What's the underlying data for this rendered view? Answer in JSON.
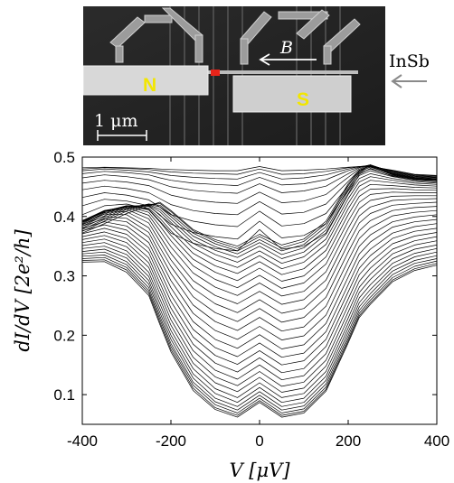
{
  "figure": {
    "micrograph": {
      "contact_left_label": "N",
      "contact_right_label": "S",
      "field_label": "B",
      "wire_label": "InSb",
      "scale_bar_label": "1 μm",
      "colors": {
        "contact_label": "#f2e600",
        "junction_marker": "#e8241a"
      }
    }
  },
  "chart_data": {
    "type": "line",
    "title": "",
    "xlabel": "V [μV]",
    "ylabel": "dI/dV [2e²/h]",
    "xlim": [
      -400,
      400
    ],
    "ylim": [
      0.05,
      0.5
    ],
    "xticks": [
      -400,
      -200,
      0,
      200,
      400
    ],
    "yticks": [
      0.1,
      0.2,
      0.3,
      0.4,
      0.5
    ],
    "xtick_labels": [
      "-400",
      "-200",
      "0",
      "200",
      "400"
    ],
    "ytick_labels": [
      "0.1",
      "0.2",
      "0.3",
      "0.4",
      "0.5"
    ],
    "grid": false,
    "legend": "none",
    "line_color": "#000000",
    "curve_count": 40,
    "x": [
      -400,
      -350,
      -300,
      -250,
      -225,
      -200,
      -150,
      -100,
      -50,
      0,
      50,
      100,
      150,
      200,
      225,
      250,
      300,
      350,
      400
    ],
    "series": [
      {
        "values": [
          0.372,
          0.388,
          0.405,
          0.418,
          0.424,
          0.41,
          0.378,
          0.361,
          0.35,
          0.37,
          0.352,
          0.362,
          0.392,
          0.455,
          0.478,
          0.485,
          0.472,
          0.465,
          0.462
        ]
      },
      {
        "values": [
          0.375,
          0.392,
          0.409,
          0.42,
          0.422,
          0.408,
          0.376,
          0.358,
          0.346,
          0.366,
          0.347,
          0.358,
          0.388,
          0.452,
          0.476,
          0.483,
          0.471,
          0.464,
          0.461
        ]
      },
      {
        "values": [
          0.378,
          0.395,
          0.412,
          0.421,
          0.419,
          0.404,
          0.372,
          0.354,
          0.342,
          0.361,
          0.342,
          0.353,
          0.383,
          0.448,
          0.473,
          0.48,
          0.469,
          0.463,
          0.46
        ]
      },
      {
        "values": [
          0.381,
          0.398,
          0.414,
          0.421,
          0.416,
          0.4,
          0.367,
          0.349,
          0.337,
          0.356,
          0.336,
          0.347,
          0.377,
          0.443,
          0.469,
          0.477,
          0.467,
          0.461,
          0.458
        ]
      },
      {
        "values": [
          0.384,
          0.401,
          0.416,
          0.42,
          0.412,
          0.395,
          0.361,
          0.343,
          0.331,
          0.35,
          0.329,
          0.34,
          0.37,
          0.437,
          0.464,
          0.472,
          0.464,
          0.459,
          0.456
        ]
      },
      {
        "values": [
          0.386,
          0.404,
          0.417,
          0.419,
          0.408,
          0.39,
          0.355,
          0.336,
          0.323,
          0.342,
          0.321,
          0.332,
          0.362,
          0.43,
          0.458,
          0.467,
          0.461,
          0.456,
          0.454
        ]
      },
      {
        "values": [
          0.388,
          0.406,
          0.418,
          0.417,
          0.403,
          0.383,
          0.347,
          0.327,
          0.314,
          0.334,
          0.312,
          0.323,
          0.353,
          0.422,
          0.451,
          0.461,
          0.457,
          0.453,
          0.451
        ]
      },
      {
        "values": [
          0.39,
          0.408,
          0.418,
          0.414,
          0.397,
          0.376,
          0.338,
          0.317,
          0.304,
          0.324,
          0.302,
          0.312,
          0.343,
          0.413,
          0.443,
          0.454,
          0.452,
          0.449,
          0.448
        ]
      },
      {
        "values": [
          0.391,
          0.409,
          0.418,
          0.411,
          0.391,
          0.368,
          0.328,
          0.306,
          0.292,
          0.313,
          0.291,
          0.3,
          0.332,
          0.403,
          0.434,
          0.446,
          0.447,
          0.445,
          0.444
        ]
      },
      {
        "values": [
          0.392,
          0.41,
          0.417,
          0.407,
          0.384,
          0.359,
          0.317,
          0.294,
          0.28,
          0.301,
          0.279,
          0.288,
          0.32,
          0.392,
          0.424,
          0.437,
          0.441,
          0.44,
          0.44
        ]
      },
      {
        "values": [
          0.393,
          0.41,
          0.415,
          0.402,
          0.376,
          0.349,
          0.305,
          0.281,
          0.267,
          0.288,
          0.266,
          0.274,
          0.307,
          0.38,
          0.413,
          0.427,
          0.434,
          0.435,
          0.435
        ]
      },
      {
        "values": [
          0.393,
          0.409,
          0.412,
          0.396,
          0.367,
          0.338,
          0.292,
          0.267,
          0.253,
          0.274,
          0.252,
          0.26,
          0.293,
          0.367,
          0.401,
          0.416,
          0.427,
          0.429,
          0.43
        ]
      },
      {
        "values": [
          0.392,
          0.407,
          0.408,
          0.389,
          0.358,
          0.327,
          0.279,
          0.253,
          0.238,
          0.26,
          0.237,
          0.245,
          0.279,
          0.354,
          0.389,
          0.405,
          0.419,
          0.422,
          0.424
        ]
      },
      {
        "values": [
          0.39,
          0.404,
          0.403,
          0.381,
          0.348,
          0.316,
          0.265,
          0.238,
          0.223,
          0.245,
          0.222,
          0.23,
          0.264,
          0.34,
          0.376,
          0.393,
          0.41,
          0.415,
          0.417
        ]
      },
      {
        "values": [
          0.387,
          0.4,
          0.397,
          0.373,
          0.338,
          0.304,
          0.251,
          0.223,
          0.208,
          0.23,
          0.207,
          0.214,
          0.249,
          0.326,
          0.363,
          0.381,
          0.401,
          0.407,
          0.41
        ]
      },
      {
        "values": [
          0.384,
          0.396,
          0.391,
          0.365,
          0.328,
          0.292,
          0.237,
          0.208,
          0.193,
          0.215,
          0.192,
          0.199,
          0.234,
          0.312,
          0.35,
          0.369,
          0.391,
          0.399,
          0.403
        ]
      },
      {
        "values": [
          0.38,
          0.391,
          0.384,
          0.356,
          0.318,
          0.28,
          0.223,
          0.193,
          0.178,
          0.201,
          0.177,
          0.184,
          0.22,
          0.298,
          0.337,
          0.357,
          0.382,
          0.391,
          0.395
        ]
      },
      {
        "values": [
          0.376,
          0.386,
          0.377,
          0.347,
          0.308,
          0.268,
          0.21,
          0.179,
          0.164,
          0.187,
          0.163,
          0.17,
          0.206,
          0.285,
          0.325,
          0.345,
          0.372,
          0.383,
          0.388
        ]
      },
      {
        "values": [
          0.371,
          0.38,
          0.37,
          0.339,
          0.298,
          0.257,
          0.197,
          0.166,
          0.151,
          0.174,
          0.15,
          0.157,
          0.193,
          0.273,
          0.313,
          0.334,
          0.363,
          0.375,
          0.38
        ]
      },
      {
        "values": [
          0.366,
          0.374,
          0.363,
          0.33,
          0.288,
          0.246,
          0.185,
          0.153,
          0.138,
          0.162,
          0.137,
          0.144,
          0.181,
          0.261,
          0.302,
          0.323,
          0.354,
          0.367,
          0.373
        ]
      },
      {
        "values": [
          0.361,
          0.368,
          0.356,
          0.322,
          0.279,
          0.236,
          0.174,
          0.141,
          0.126,
          0.15,
          0.125,
          0.132,
          0.169,
          0.25,
          0.291,
          0.313,
          0.345,
          0.359,
          0.366
        ]
      },
      {
        "values": [
          0.356,
          0.362,
          0.349,
          0.314,
          0.27,
          0.226,
          0.163,
          0.13,
          0.115,
          0.139,
          0.114,
          0.121,
          0.158,
          0.239,
          0.281,
          0.303,
          0.337,
          0.352,
          0.359
        ]
      },
      {
        "values": [
          0.351,
          0.356,
          0.342,
          0.306,
          0.261,
          0.217,
          0.153,
          0.12,
          0.105,
          0.129,
          0.104,
          0.111,
          0.148,
          0.229,
          0.272,
          0.294,
          0.329,
          0.345,
          0.352
        ]
      },
      {
        "values": [
          0.346,
          0.35,
          0.336,
          0.299,
          0.253,
          0.208,
          0.144,
          0.11,
          0.095,
          0.12,
          0.095,
          0.102,
          0.139,
          0.22,
          0.263,
          0.285,
          0.321,
          0.338,
          0.346
        ]
      },
      {
        "values": [
          0.341,
          0.345,
          0.33,
          0.292,
          0.245,
          0.2,
          0.135,
          0.102,
          0.087,
          0.112,
          0.087,
          0.094,
          0.131,
          0.212,
          0.255,
          0.277,
          0.314,
          0.332,
          0.34
        ]
      },
      {
        "values": [
          0.337,
          0.34,
          0.324,
          0.286,
          0.238,
          0.193,
          0.128,
          0.094,
          0.08,
          0.105,
          0.08,
          0.087,
          0.124,
          0.205,
          0.248,
          0.27,
          0.308,
          0.326,
          0.334
        ]
      },
      {
        "values": [
          0.333,
          0.335,
          0.319,
          0.28,
          0.232,
          0.186,
          0.121,
          0.088,
          0.074,
          0.099,
          0.074,
          0.081,
          0.118,
          0.199,
          0.242,
          0.264,
          0.302,
          0.321,
          0.329
        ]
      },
      {
        "values": [
          0.329,
          0.331,
          0.314,
          0.275,
          0.227,
          0.181,
          0.116,
          0.083,
          0.069,
          0.094,
          0.069,
          0.076,
          0.113,
          0.194,
          0.237,
          0.259,
          0.297,
          0.316,
          0.325
        ]
      },
      {
        "values": [
          0.326,
          0.327,
          0.31,
          0.271,
          0.222,
          0.176,
          0.111,
          0.078,
          0.065,
          0.09,
          0.065,
          0.072,
          0.109,
          0.19,
          0.233,
          0.255,
          0.293,
          0.312,
          0.321
        ]
      },
      {
        "values": [
          0.323,
          0.324,
          0.306,
          0.267,
          0.218,
          0.172,
          0.107,
          0.075,
          0.062,
          0.087,
          0.062,
          0.069,
          0.106,
          0.187,
          0.23,
          0.252,
          0.29,
          0.309,
          0.318
        ]
      },
      {
        "values": [
          0.403,
          0.418,
          0.421,
          0.412,
          0.392,
          0.372,
          0.355,
          0.346,
          0.342,
          0.378,
          0.345,
          0.35,
          0.372,
          0.438,
          0.471,
          0.481,
          0.468,
          0.462,
          0.46
        ]
      },
      {
        "values": [
          0.418,
          0.429,
          0.426,
          0.418,
          0.402,
          0.387,
          0.373,
          0.366,
          0.362,
          0.392,
          0.364,
          0.368,
          0.388,
          0.445,
          0.474,
          0.484,
          0.47,
          0.463,
          0.461
        ]
      },
      {
        "values": [
          0.432,
          0.44,
          0.436,
          0.428,
          0.416,
          0.403,
          0.392,
          0.386,
          0.383,
          0.409,
          0.384,
          0.388,
          0.405,
          0.452,
          0.476,
          0.486,
          0.471,
          0.464,
          0.462
        ]
      },
      {
        "values": [
          0.445,
          0.451,
          0.447,
          0.44,
          0.43,
          0.42,
          0.41,
          0.405,
          0.403,
          0.425,
          0.404,
          0.407,
          0.421,
          0.459,
          0.478,
          0.486,
          0.472,
          0.465,
          0.463
        ]
      },
      {
        "values": [
          0.456,
          0.461,
          0.458,
          0.452,
          0.444,
          0.436,
          0.428,
          0.424,
          0.422,
          0.441,
          0.423,
          0.426,
          0.437,
          0.466,
          0.48,
          0.487,
          0.473,
          0.466,
          0.464
        ]
      },
      {
        "values": [
          0.465,
          0.47,
          0.467,
          0.462,
          0.456,
          0.45,
          0.444,
          0.441,
          0.439,
          0.455,
          0.44,
          0.443,
          0.451,
          0.472,
          0.482,
          0.487,
          0.474,
          0.467,
          0.465
        ]
      },
      {
        "values": [
          0.472,
          0.476,
          0.474,
          0.47,
          0.465,
          0.461,
          0.456,
          0.454,
          0.452,
          0.466,
          0.453,
          0.455,
          0.462,
          0.477,
          0.483,
          0.487,
          0.475,
          0.468,
          0.466
        ]
      },
      {
        "values": [
          0.477,
          0.48,
          0.478,
          0.475,
          0.472,
          0.469,
          0.466,
          0.464,
          0.463,
          0.474,
          0.463,
          0.465,
          0.47,
          0.48,
          0.484,
          0.486,
          0.476,
          0.469,
          0.467
        ]
      },
      {
        "values": [
          0.48,
          0.482,
          0.481,
          0.479,
          0.477,
          0.475,
          0.473,
          0.472,
          0.471,
          0.48,
          0.471,
          0.472,
          0.476,
          0.482,
          0.484,
          0.485,
          0.477,
          0.47,
          0.468
        ]
      },
      {
        "values": [
          0.482,
          0.483,
          0.482,
          0.481,
          0.48,
          0.479,
          0.478,
          0.477,
          0.477,
          0.484,
          0.477,
          0.478,
          0.48,
          0.483,
          0.484,
          0.484,
          0.478,
          0.471,
          0.469
        ]
      }
    ]
  }
}
